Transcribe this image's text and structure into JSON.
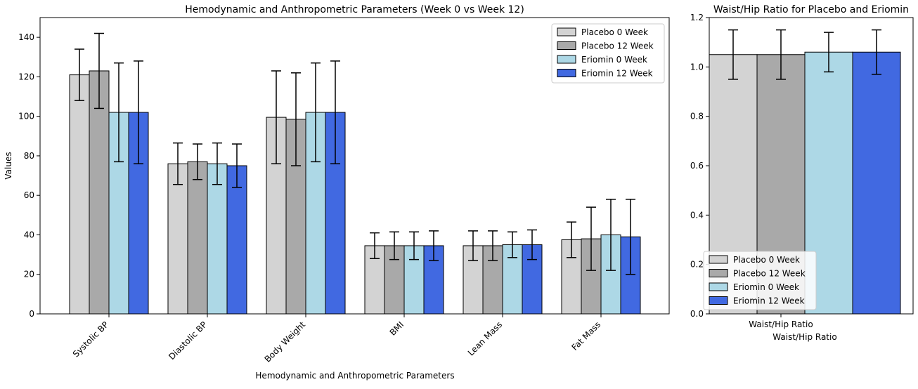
{
  "chart_data": [
    {
      "type": "bar",
      "title": "Hemodynamic and Anthropometric Parameters (Week 0 vs Week 12)",
      "xlabel": "Hemodynamic and Anthropometric Parameters",
      "ylabel": "Values",
      "categories": [
        "Systolic BP",
        "Diastolic BP",
        "Body Weight",
        "BMI",
        "Lean Mass",
        "Fat Mass"
      ],
      "ylim": [
        0,
        150
      ],
      "yticks": [
        0,
        20,
        40,
        60,
        80,
        100,
        120,
        140
      ],
      "grid": false,
      "legend_position": "top-right",
      "series": [
        {
          "name": "Placebo 0 Week",
          "color": "#d3d3d3",
          "values": [
            121,
            76,
            99.5,
            34.5,
            34.5,
            37.5
          ],
          "errors": [
            13,
            10.5,
            23.5,
            6.5,
            7.5,
            9
          ]
        },
        {
          "name": "Placebo 12 Week",
          "color": "#a9a9a9",
          "values": [
            123,
            77,
            98.5,
            34.5,
            34.5,
            38
          ],
          "errors": [
            19,
            9,
            23.5,
            7,
            7.5,
            16
          ]
        },
        {
          "name": "Eriomin 0 Week",
          "color": "#add8e6",
          "values": [
            102,
            76,
            102,
            34.5,
            35,
            40
          ],
          "errors": [
            25,
            10.5,
            25,
            7,
            6.5,
            18
          ]
        },
        {
          "name": "Eriomin 12 Week",
          "color": "#4169e1",
          "values": [
            102,
            75,
            102,
            34.5,
            35,
            39
          ],
          "errors": [
            26,
            11,
            26,
            7.5,
            7.5,
            19
          ]
        }
      ]
    },
    {
      "type": "bar",
      "title": "Waist/Hip Ratio for Placebo and Eriomin",
      "xlabel": "Waist/Hip Ratio",
      "ylabel": "",
      "categories": [
        "Waist/Hip Ratio"
      ],
      "ylim": [
        0,
        1.2
      ],
      "yticks": [
        0.0,
        0.2,
        0.4,
        0.6,
        0.8,
        1.0,
        1.2
      ],
      "grid": false,
      "legend_position": "bottom-left",
      "series": [
        {
          "name": "Placebo 0 Week",
          "color": "#d3d3d3",
          "values": [
            1.05
          ],
          "errors": [
            0.1
          ]
        },
        {
          "name": "Placebo 12 Week",
          "color": "#a9a9a9",
          "values": [
            1.05
          ],
          "errors": [
            0.1
          ]
        },
        {
          "name": "Eriomin 0 Week",
          "color": "#add8e6",
          "values": [
            1.06
          ],
          "errors": [
            0.08
          ]
        },
        {
          "name": "Eriomin 12 Week",
          "color": "#4169e1",
          "values": [
            1.06
          ],
          "errors": [
            0.09
          ]
        }
      ]
    }
  ]
}
